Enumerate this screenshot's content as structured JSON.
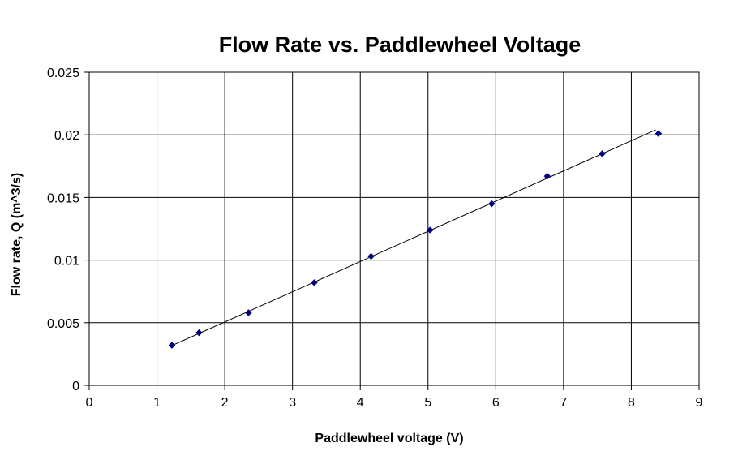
{
  "chart_data": {
    "type": "scatter",
    "title": "Flow Rate vs. Paddlewheel Voltage",
    "xlabel": "Paddlewheel voltage (V)",
    "ylabel": "Flow rate, Q (m^3/s)",
    "xlim": [
      0,
      9
    ],
    "ylim": [
      0,
      0.025
    ],
    "x_ticks": [
      0,
      1,
      2,
      3,
      4,
      5,
      6,
      7,
      8,
      9
    ],
    "y_ticks": [
      0,
      0.005,
      0.01,
      0.015,
      0.02,
      0.025
    ],
    "x_tick_labels": [
      "0",
      "1",
      "2",
      "3",
      "4",
      "5",
      "6",
      "7",
      "8",
      "9"
    ],
    "y_tick_labels": [
      "0",
      "0.005",
      "0.01",
      "0.015",
      "0.02",
      "0.025"
    ],
    "grid": true,
    "legend": "none",
    "marker_color": "#000080",
    "trendline_color": "#000000",
    "series": [
      {
        "points": [
          [
            1.22,
            0.0032
          ],
          [
            1.62,
            0.0042
          ],
          [
            2.35,
            0.0058
          ],
          [
            3.32,
            0.0082
          ],
          [
            4.16,
            0.0103
          ],
          [
            5.03,
            0.0124
          ],
          [
            5.94,
            0.0145
          ],
          [
            6.76,
            0.0167
          ],
          [
            7.57,
            0.0185
          ],
          [
            8.4,
            0.0201
          ]
        ],
        "trendline": {
          "type": "linear",
          "from": [
            1.22,
            0.00318
          ],
          "to": [
            8.36,
            0.0204
          ]
        }
      }
    ]
  }
}
